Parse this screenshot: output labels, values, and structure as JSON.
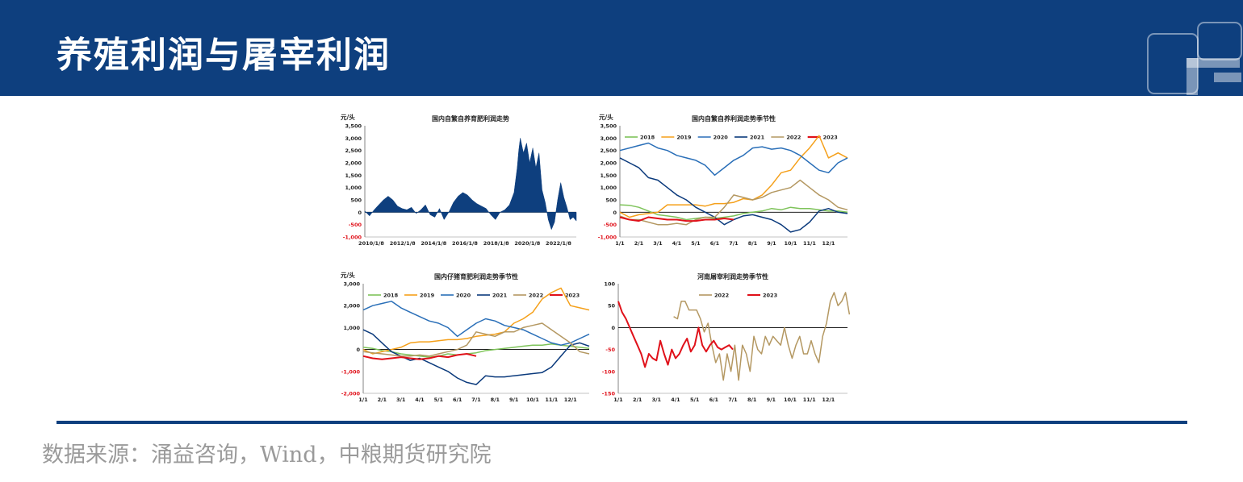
{
  "page": {
    "title": "养殖利润与屠宰利润",
    "source": "数据来源：涌益咨询，Wind，中粮期货研究院"
  },
  "colors": {
    "header": "#0e3f7e",
    "s2018": "#7ec35a",
    "s2019": "#f5a01a",
    "s2020": "#2a6fb8",
    "s2021": "#0b3a7c",
    "s2022": "#b49862",
    "s2023": "#e0111a",
    "area": "#0e3f7e"
  },
  "chart_data": [
    {
      "id": "c1",
      "type": "area",
      "title": "国内自繁自养育肥利润走势",
      "ylabel": "元/头",
      "ylim": [
        -1000,
        3500
      ],
      "yticks": [
        "3,500",
        "3,000",
        "2,500",
        "2,000",
        "1,500",
        "1,000",
        "500",
        "0",
        "-500",
        "-1,000"
      ],
      "xticks": [
        "2010/1/8",
        "2012/1/8",
        "2014/1/8",
        "2016/1/8",
        "2018/1/8",
        "2020/1/8",
        "2022/1/8"
      ],
      "x_range": [
        2010.0,
        2023.6
      ],
      "series": [
        {
          "name": "自繁自养育肥利润",
          "x": [
            2010.0,
            2010.3,
            2010.6,
            2010.9,
            2011.2,
            2011.5,
            2011.8,
            2012.1,
            2012.4,
            2012.7,
            2013.0,
            2013.3,
            2013.6,
            2013.9,
            2014.2,
            2014.5,
            2014.8,
            2015.1,
            2015.4,
            2015.7,
            2016.0,
            2016.3,
            2016.6,
            2016.9,
            2017.2,
            2017.5,
            2017.8,
            2018.1,
            2018.4,
            2018.7,
            2019.0,
            2019.3,
            2019.6,
            2019.8,
            2019.9,
            2020.0,
            2020.2,
            2020.4,
            2020.6,
            2020.8,
            2021.0,
            2021.2,
            2021.4,
            2021.6,
            2021.8,
            2022.0,
            2022.2,
            2022.4,
            2022.6,
            2022.8,
            2023.0,
            2023.2,
            2023.4,
            2023.6
          ],
          "y": [
            50,
            -150,
            100,
            300,
            500,
            650,
            500,
            250,
            150,
            100,
            200,
            -50,
            100,
            300,
            -100,
            -200,
            150,
            -300,
            0,
            400,
            650,
            800,
            700,
            500,
            350,
            250,
            150,
            -100,
            -300,
            0,
            100,
            300,
            800,
            1800,
            2500,
            3000,
            2400,
            2800,
            2000,
            2600,
            1800,
            2400,
            900,
            400,
            -300,
            -700,
            -400,
            500,
            1200,
            600,
            200,
            -300,
            -200,
            -350
          ]
        }
      ]
    },
    {
      "id": "c2",
      "type": "line",
      "title": "国内自繁自养利润走势季节性",
      "ylabel": "元/头",
      "ylim": [
        -1000,
        3500
      ],
      "yticks": [
        "3,500",
        "3,000",
        "2,500",
        "2,000",
        "1,500",
        "1,000",
        "500",
        "0",
        "-500",
        "-1,000"
      ],
      "xticks": [
        "1/1",
        "2/1",
        "3/1",
        "4/1",
        "5/1",
        "6/1",
        "7/1",
        "8/1",
        "9/1",
        "10/1",
        "11/1",
        "12/1"
      ],
      "x_range": [
        0,
        12
      ],
      "legend": [
        "2018",
        "2019",
        "2020",
        "2021",
        "2022",
        "2023"
      ],
      "series": [
        {
          "name": "2018",
          "x": [
            0,
            0.5,
            1,
            1.5,
            2,
            2.5,
            3,
            3.5,
            4,
            4.5,
            5,
            5.5,
            6,
            6.5,
            7,
            7.5,
            8,
            8.5,
            9,
            9.5,
            10,
            10.5,
            11,
            11.5,
            12
          ],
          "y": [
            300,
            280,
            200,
            50,
            -100,
            -150,
            -200,
            -300,
            -250,
            -200,
            -250,
            -200,
            -150,
            -50,
            0,
            50,
            150,
            100,
            200,
            150,
            150,
            100,
            50,
            50,
            0
          ]
        },
        {
          "name": "2019",
          "x": [
            0,
            0.5,
            1,
            1.5,
            2,
            2.5,
            3,
            3.5,
            4,
            4.5,
            5,
            5.5,
            6,
            6.5,
            7,
            7.5,
            8,
            8.5,
            9,
            9.5,
            10,
            10.5,
            11,
            11.5,
            12
          ],
          "y": [
            0,
            -200,
            -100,
            -50,
            0,
            300,
            300,
            300,
            300,
            250,
            350,
            350,
            400,
            550,
            500,
            700,
            1100,
            1600,
            1700,
            2200,
            2600,
            3100,
            2200,
            2400,
            2200
          ]
        },
        {
          "name": "2020",
          "x": [
            0,
            0.5,
            1,
            1.5,
            2,
            2.5,
            3,
            3.5,
            4,
            4.5,
            5,
            5.5,
            6,
            6.5,
            7,
            7.5,
            8,
            8.5,
            9,
            9.5,
            10,
            10.5,
            11,
            11.5,
            12
          ],
          "y": [
            2500,
            2600,
            2700,
            2800,
            2600,
            2500,
            2300,
            2200,
            2100,
            1900,
            1500,
            1800,
            2100,
            2300,
            2600,
            2650,
            2550,
            2600,
            2500,
            2300,
            2000,
            1700,
            1600,
            2000,
            2200
          ]
        },
        {
          "name": "2021",
          "x": [
            0,
            0.5,
            1,
            1.5,
            2,
            2.5,
            3,
            3.5,
            4,
            4.5,
            5,
            5.5,
            6,
            6.5,
            7,
            7.5,
            8,
            8.5,
            9,
            9.5,
            10,
            10.5,
            11,
            11.5,
            12
          ],
          "y": [
            2200,
            2000,
            1800,
            1400,
            1300,
            1000,
            700,
            500,
            200,
            0,
            -200,
            -500,
            -300,
            -150,
            -100,
            -200,
            -300,
            -500,
            -800,
            -700,
            -400,
            50,
            150,
            0,
            -50
          ]
        },
        {
          "name": "2022",
          "x": [
            0,
            0.5,
            1,
            1.5,
            2,
            2.5,
            3,
            3.5,
            4,
            4.5,
            5,
            5.5,
            6,
            6.5,
            7,
            7.5,
            8,
            8.5,
            9,
            9.5,
            10,
            10.5,
            11,
            11.5,
            12
          ],
          "y": [
            -150,
            -300,
            -300,
            -400,
            -500,
            -500,
            -450,
            -500,
            -300,
            -200,
            -200,
            200,
            700,
            600,
            500,
            600,
            800,
            900,
            1000,
            1300,
            1000,
            700,
            500,
            200,
            100
          ]
        },
        {
          "name": "2023",
          "x": [
            0,
            0.5,
            1,
            1.5,
            2,
            2.5,
            3,
            3.5,
            4,
            4.5,
            5,
            5.5,
            6
          ],
          "y": [
            -200,
            -300,
            -350,
            -200,
            -250,
            -300,
            -300,
            -350,
            -350,
            -300,
            -300,
            -250,
            -300
          ]
        }
      ]
    },
    {
      "id": "c3",
      "type": "line",
      "title": "国内仔猪育肥利润走势季节性",
      "ylabel": "元/头",
      "ylim": [
        -2000,
        3000
      ],
      "yticks": [
        "3,000",
        "2,000",
        "1,000",
        "0",
        "-1,000",
        "-2,000"
      ],
      "xticks": [
        "1/1",
        "2/1",
        "3/1",
        "4/1",
        "5/1",
        "6/1",
        "7/1",
        "8/1",
        "9/1",
        "10/1",
        "11/1",
        "12/1"
      ],
      "x_range": [
        0,
        12
      ],
      "legend": [
        "2018",
        "2019",
        "2020",
        "2021",
        "2022",
        "2023"
      ],
      "series": [
        {
          "name": "2018",
          "x": [
            0,
            0.5,
            1,
            1.5,
            2,
            2.5,
            3,
            3.5,
            4,
            4.5,
            5,
            5.5,
            6,
            6.5,
            7,
            7.5,
            8,
            8.5,
            9,
            9.5,
            10,
            10.5,
            11,
            11.5,
            12
          ],
          "y": [
            100,
            50,
            -50,
            -100,
            -200,
            -250,
            -300,
            -350,
            -300,
            -200,
            -250,
            -200,
            -150,
            -50,
            0,
            50,
            100,
            150,
            200,
            200,
            250,
            200,
            150,
            100,
            50
          ]
        },
        {
          "name": "2019",
          "x": [
            0,
            0.5,
            1,
            1.5,
            2,
            2.5,
            3,
            3.5,
            4,
            4.5,
            5,
            5.5,
            6,
            6.5,
            7,
            7.5,
            8,
            8.5,
            9,
            9.5,
            10,
            10.5,
            11,
            11.5,
            12
          ],
          "y": [
            0,
            -200,
            -100,
            0,
            100,
            300,
            350,
            350,
            400,
            450,
            450,
            500,
            600,
            650,
            700,
            800,
            1200,
            1400,
            1700,
            2300,
            2600,
            2800,
            2000,
            1900,
            1800
          ]
        },
        {
          "name": "2020",
          "x": [
            0,
            0.5,
            1,
            1.5,
            2,
            2.5,
            3,
            3.5,
            4,
            4.5,
            5,
            5.5,
            6,
            6.5,
            7,
            7.5,
            8,
            8.5,
            9,
            9.5,
            10,
            10.5,
            11,
            11.5,
            12
          ],
          "y": [
            1800,
            2000,
            2100,
            2200,
            1900,
            1700,
            1500,
            1300,
            1200,
            1000,
            600,
            900,
            1200,
            1400,
            1300,
            1100,
            1000,
            900,
            700,
            500,
            300,
            200,
            300,
            500,
            700
          ]
        },
        {
          "name": "2021",
          "x": [
            0,
            0.5,
            1,
            1.5,
            2,
            2.5,
            3,
            3.5,
            4,
            4.5,
            5,
            5.5,
            6,
            6.5,
            7,
            7.5,
            8,
            8.5,
            9,
            9.5,
            10,
            10.5,
            11,
            11.5,
            12
          ],
          "y": [
            900,
            700,
            300,
            -100,
            -300,
            -500,
            -400,
            -600,
            -800,
            -1000,
            -1300,
            -1500,
            -1600,
            -1200,
            -1250,
            -1250,
            -1200,
            -1150,
            -1100,
            -1050,
            -800,
            -300,
            200,
            300,
            150
          ]
        },
        {
          "name": "2022",
          "x": [
            0,
            0.5,
            1,
            1.5,
            2,
            2.5,
            3,
            3.5,
            4,
            4.5,
            5,
            5.5,
            6,
            6.5,
            7,
            7.5,
            8,
            8.5,
            9,
            9.5,
            10,
            10.5,
            11,
            11.5,
            12
          ],
          "y": [
            -100,
            -150,
            -200,
            -250,
            -300,
            -300,
            -250,
            -300,
            -200,
            -100,
            0,
            200,
            800,
            700,
            600,
            800,
            800,
            1000,
            1100,
            1200,
            900,
            600,
            300,
            -100,
            -200
          ]
        },
        {
          "name": "2023",
          "x": [
            0,
            0.5,
            1,
            1.5,
            2,
            2.5,
            3,
            3.5,
            4,
            4.5,
            5,
            5.5,
            6
          ],
          "y": [
            -300,
            -400,
            -450,
            -400,
            -350,
            -400,
            -450,
            -400,
            -300,
            -350,
            -250,
            -200,
            -300
          ]
        }
      ]
    },
    {
      "id": "c4",
      "type": "line",
      "title": "河南屠宰利润走势季节性",
      "ylabel": "",
      "ylim": [
        -150,
        100
      ],
      "yticks": [
        "100",
        "50",
        "0",
        "-50",
        "-100",
        "-150"
      ],
      "xticks": [
        "1/1",
        "2/1",
        "3/1",
        "4/1",
        "5/1",
        "6/1",
        "7/1",
        "8/1",
        "9/1",
        "10/1",
        "11/1",
        "12/1"
      ],
      "x_range": [
        0,
        12
      ],
      "legend": [
        "2022",
        "2023"
      ],
      "series": [
        {
          "name": "2022",
          "x": [
            2.9,
            3.1,
            3.3,
            3.5,
            3.7,
            3.9,
            4.1,
            4.3,
            4.5,
            4.7,
            4.9,
            5.1,
            5.3,
            5.5,
            5.7,
            5.9,
            6.1,
            6.3,
            6.5,
            6.7,
            6.9,
            7.1,
            7.3,
            7.5,
            7.7,
            7.9,
            8.1,
            8.3,
            8.5,
            8.7,
            8.9,
            9.1,
            9.3,
            9.5,
            9.7,
            9.9,
            10.1,
            10.3,
            10.5,
            10.7,
            10.9,
            11.1,
            11.3,
            11.5,
            11.7,
            11.9,
            12.1
          ],
          "y": [
            25,
            20,
            60,
            60,
            40,
            40,
            40,
            20,
            -10,
            10,
            -40,
            -80,
            -60,
            -120,
            -60,
            -100,
            -40,
            -120,
            -40,
            -60,
            -100,
            -20,
            -50,
            -60,
            -20,
            -40,
            -20,
            -30,
            -40,
            0,
            -40,
            -70,
            -40,
            -20,
            -60,
            -60,
            -30,
            -60,
            -80,
            -20,
            10,
            60,
            80,
            50,
            60,
            80,
            30
          ]
        },
        {
          "name": "2023",
          "x": [
            0,
            0.2,
            0.4,
            0.6,
            0.8,
            1.0,
            1.2,
            1.4,
            1.6,
            1.8,
            2.0,
            2.2,
            2.4,
            2.6,
            2.8,
            3.0,
            3.2,
            3.4,
            3.6,
            3.8,
            4.0,
            4.2,
            4.4,
            4.6,
            4.8,
            5.0,
            5.2,
            5.4,
            5.6,
            5.8,
            6.0
          ],
          "y": [
            60,
            35,
            20,
            0,
            -20,
            -40,
            -60,
            -90,
            -60,
            -70,
            -75,
            -30,
            -60,
            -85,
            -50,
            -70,
            -60,
            -40,
            -25,
            -55,
            -40,
            0,
            -40,
            -55,
            -40,
            -30,
            -45,
            -50,
            -45,
            -40,
            -50
          ]
        }
      ]
    }
  ]
}
